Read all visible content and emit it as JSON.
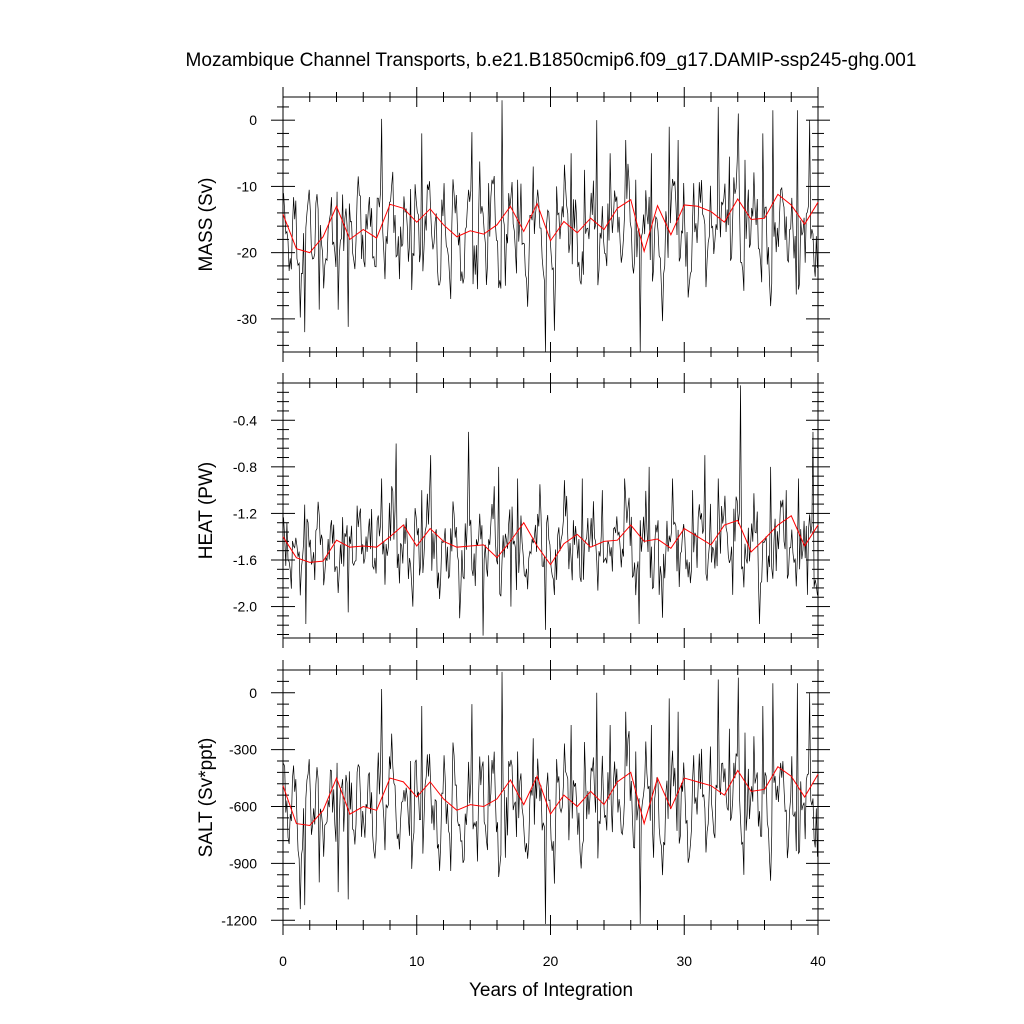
{
  "chart_data": {
    "type": "line",
    "title": "Mozambique Channel Transports, b.e21.B1850cmip6.f09_g17.DAMIP-ssp245-ghg.001",
    "xlabel": "Years of Integration",
    "xlim": [
      0,
      40
    ],
    "xticks": [
      "0",
      "10",
      "20",
      "30",
      "40"
    ],
    "colors": {
      "monthly": "#000000",
      "annual": "#ff0000"
    },
    "panels": [
      {
        "ylabel": "MASS (Sv)",
        "ylim": [
          -35,
          3.5
        ],
        "yticks": [
          "0",
          "-10",
          "-20",
          "-30"
        ],
        "ytick_values": [
          0,
          -10,
          -20,
          -30
        ],
        "annual_mean": [
          -14.2,
          -19.4,
          -20.0,
          -17.6,
          -13.0,
          -18.0,
          -16.5,
          -17.8,
          -12.7,
          -13.3,
          -15.4,
          -13.4,
          -15.8,
          -17.6,
          -16.7,
          -17.2,
          -15.8,
          -13.0,
          -16.8,
          -12.6,
          -18.2,
          -15.3,
          -17.0,
          -14.8,
          -16.5,
          -13.3,
          -12.0,
          -19.8,
          -12.9,
          -17.3,
          -12.8,
          -13.0,
          -13.8,
          -15.4,
          -11.9,
          -15.0,
          -14.8,
          -11.2,
          -12.8,
          -15.7,
          -12.4
        ],
        "monthly_anchor": [
          -12,
          -18,
          -22,
          -12,
          -18,
          -29,
          -16,
          -12,
          -18,
          -22,
          -10,
          -16,
          -25,
          -18,
          -12,
          -20,
          -28,
          -14,
          -18,
          -10,
          -16,
          -22,
          -8,
          -18,
          -20,
          -12,
          -16,
          -25,
          -10,
          -16,
          -22,
          -14,
          -8,
          -16,
          -22,
          -18,
          -12,
          -20,
          -26,
          -10,
          -18,
          -24,
          -14,
          -8,
          -20,
          -16,
          -28,
          -12,
          -18,
          -22,
          -10,
          -14,
          -20,
          -26,
          -16,
          -12,
          -22,
          -18,
          -10,
          -14,
          -24,
          -16,
          -8,
          -20,
          -28,
          -14,
          -18,
          -10,
          -16,
          -22,
          -12,
          -20,
          -26,
          -14,
          -18,
          -10,
          -16,
          -24,
          -12,
          -20,
          -28,
          -14,
          -18,
          -8,
          -16,
          -22,
          -12,
          -20,
          -26,
          -14,
          -18,
          -10,
          -16,
          -24,
          -12,
          -20,
          -15,
          -18,
          -10,
          -16,
          -22,
          -12,
          -8,
          -20,
          -26,
          -14,
          -18,
          -10,
          -16,
          -24,
          -12,
          -20,
          -28,
          -14,
          -18,
          -8,
          -16,
          -22,
          -12,
          -20,
          -26,
          -14,
          -18,
          -10,
          -16,
          -24,
          -12,
          -20,
          -15,
          -14,
          -10,
          -16,
          -22,
          -12,
          -8,
          -20,
          -26,
          -14,
          -18,
          -10,
          -16,
          -24,
          -12,
          -20,
          -28,
          -14,
          -18,
          -8,
          -16,
          -22,
          -12,
          -20,
          -26,
          -14,
          -18,
          -10,
          -16,
          -24
        ],
        "extremes": [
          [
            1.6,
            -32.0
          ],
          [
            1.9,
            -10.5
          ],
          [
            2.7,
            -28.6
          ],
          [
            4.0,
            -10.8
          ],
          [
            4.8,
            -31.2
          ],
          [
            7.3,
            0.2
          ],
          [
            7.6,
            -24.0
          ],
          [
            9.5,
            -10.4
          ],
          [
            10.3,
            -2.0
          ],
          [
            12.0,
            -9.5
          ],
          [
            12.5,
            -27.0
          ],
          [
            14.1,
            -1.8
          ],
          [
            14.5,
            -25.5
          ],
          [
            15.3,
            -9.5
          ],
          [
            16.3,
            3.0
          ],
          [
            16.6,
            -25.0
          ],
          [
            17.5,
            -9.0
          ],
          [
            18.7,
            -7.0
          ],
          [
            19.6,
            -35.0
          ],
          [
            20.4,
            -10.0
          ],
          [
            21.5,
            -5.0
          ],
          [
            22.5,
            -7.5
          ],
          [
            23.4,
            0.0
          ],
          [
            24.4,
            -5.0
          ],
          [
            25.6,
            -3.0
          ],
          [
            26.3,
            -9.0
          ],
          [
            26.7,
            -35.0
          ],
          [
            27.5,
            -5.0
          ],
          [
            28.8,
            -1.0
          ],
          [
            29.5,
            -3.0
          ],
          [
            30.7,
            -9.5
          ],
          [
            32.5,
            2.0
          ],
          [
            33.3,
            -5.5
          ],
          [
            34.0,
            1.0
          ],
          [
            34.5,
            -6.0
          ],
          [
            35.8,
            -2.0
          ],
          [
            36.6,
            1.5
          ],
          [
            37.2,
            -10.5
          ],
          [
            38.4,
            1.5
          ],
          [
            39.3,
            0.0
          ],
          [
            39.8,
            -17.5
          ]
        ]
      },
      {
        "ylabel": "HEAT (PW)",
        "ylim": [
          -2.27,
          -0.08
        ],
        "yticks": [
          "-0.4",
          "-0.8",
          "-1.2",
          "-1.6",
          "-2.0"
        ],
        "ytick_values": [
          -0.4,
          -0.8,
          -1.2,
          -1.6,
          -2.0
        ],
        "annual_mean": [
          -1.4,
          -1.58,
          -1.62,
          -1.61,
          -1.43,
          -1.49,
          -1.48,
          -1.49,
          -1.4,
          -1.3,
          -1.48,
          -1.33,
          -1.44,
          -1.49,
          -1.48,
          -1.47,
          -1.58,
          -1.44,
          -1.28,
          -1.48,
          -1.64,
          -1.46,
          -1.38,
          -1.49,
          -1.44,
          -1.43,
          -1.3,
          -1.44,
          -1.42,
          -1.5,
          -1.33,
          -1.4,
          -1.47,
          -1.3,
          -1.26,
          -1.53,
          -1.42,
          -1.3,
          -1.22,
          -1.48,
          -1.3
        ],
        "monthly_anchor": [
          -1.3,
          -1.5,
          -1.7,
          -1.4,
          -1.5,
          -1.9,
          -1.4,
          -1.3,
          -1.5,
          -1.7,
          -1.3,
          -1.4,
          -1.8,
          -1.5,
          -1.3,
          -1.6,
          -1.9,
          -1.4,
          -1.5,
          -1.2,
          -1.4,
          -1.7,
          -1.1,
          -1.5,
          -1.6,
          -1.3,
          -1.4,
          -1.8,
          -1.2,
          -1.4,
          -1.7,
          -1.4,
          -1.1,
          -1.4,
          -1.7,
          -1.5,
          -1.3,
          -1.6,
          -1.8,
          -1.2,
          -1.5,
          -1.7,
          -1.4,
          -1.1,
          -1.6,
          -1.4,
          -1.9,
          -1.3,
          -1.5,
          -1.7,
          -1.2,
          -1.4,
          -1.6,
          -1.8,
          -1.4,
          -1.3,
          -1.7,
          -1.5,
          -1.2,
          -1.4,
          -1.8,
          -1.4,
          -1.1,
          -1.6,
          -1.9,
          -1.4,
          -1.5,
          -1.2,
          -1.4,
          -1.7,
          -1.3,
          -1.6,
          -1.8,
          -1.4,
          -1.5,
          -1.2,
          -1.4,
          -1.8,
          -1.3,
          -1.6,
          -1.9,
          -1.4,
          -1.5,
          -1.1,
          -1.4,
          -1.7,
          -1.3,
          -1.6,
          -1.8,
          -1.4,
          -1.5,
          -1.2,
          -1.4,
          -1.8,
          -1.3,
          -1.6,
          -1.5,
          -1.5,
          -1.2,
          -1.4,
          -1.7,
          -1.3,
          -1.1,
          -1.6,
          -1.8,
          -1.4,
          -1.5,
          -1.2,
          -1.4,
          -1.8,
          -1.3,
          -1.6,
          -1.9,
          -1.4,
          -1.5,
          -1.1,
          -1.4,
          -1.7,
          -1.3,
          -1.6,
          -1.8,
          -1.4,
          -1.5,
          -1.2,
          -1.4,
          -1.8,
          -1.3,
          -1.6,
          -1.5,
          -1.4,
          -1.2,
          -1.4,
          -1.7,
          -1.3,
          -1.1,
          -1.6,
          -1.8,
          -1.4,
          -1.5,
          -1.2,
          -1.4,
          -1.8,
          -1.3,
          -1.6,
          -1.9,
          -1.4,
          -1.5,
          -1.1,
          -1.4,
          -1.7,
          -1.3,
          -1.6,
          -1.8,
          -1.4,
          -1.5,
          -1.2,
          -1.4,
          -1.8
        ],
        "extremes": [
          [
            1.7,
            -2.15
          ],
          [
            2.6,
            -1.1
          ],
          [
            4.8,
            -2.05
          ],
          [
            7.3,
            -0.9
          ],
          [
            8.4,
            -0.6
          ],
          [
            9.7,
            -2.0
          ],
          [
            10.3,
            -1.0
          ],
          [
            11.0,
            -0.7
          ],
          [
            13.2,
            -2.1
          ],
          [
            13.8,
            -0.5
          ],
          [
            14.9,
            -2.25
          ],
          [
            16.1,
            -0.8
          ],
          [
            17.0,
            -2.0
          ],
          [
            17.5,
            -0.9
          ],
          [
            19.2,
            -0.95
          ],
          [
            19.6,
            -2.2
          ],
          [
            21.2,
            -1.05
          ],
          [
            22.3,
            -0.9
          ],
          [
            23.8,
            -1.0
          ],
          [
            25.5,
            -0.9
          ],
          [
            26.6,
            -2.15
          ],
          [
            27.3,
            -0.8
          ],
          [
            28.1,
            -1.9
          ],
          [
            29.1,
            -0.9
          ],
          [
            30.6,
            -1.0
          ],
          [
            31.5,
            -0.7
          ],
          [
            32.5,
            -0.9
          ],
          [
            33.6,
            -1.9
          ],
          [
            34.2,
            -0.1
          ],
          [
            35.6,
            -2.15
          ],
          [
            36.4,
            -0.8
          ],
          [
            37.6,
            -1.0
          ],
          [
            38.5,
            -0.9
          ],
          [
            39.2,
            -1.9
          ],
          [
            39.6,
            -0.5
          ]
        ]
      },
      {
        "ylabel": "SALT (Sv*ppt)",
        "ylim": [
          -1225,
          120
        ],
        "yticks": [
          "0",
          "-300",
          "-600",
          "-900",
          "-1200"
        ],
        "ytick_values": [
          0,
          -300,
          -600,
          -900,
          -1200
        ],
        "annual_mean": [
          -490,
          -690,
          -700,
          -620,
          -450,
          -640,
          -600,
          -620,
          -450,
          -470,
          -550,
          -470,
          -560,
          -620,
          -590,
          -600,
          -560,
          -460,
          -590,
          -440,
          -640,
          -540,
          -600,
          -520,
          -590,
          -470,
          -420,
          -690,
          -450,
          -610,
          -450,
          -470,
          -490,
          -540,
          -410,
          -520,
          -510,
          -390,
          -440,
          -550,
          -430
        ],
        "monthly_anchor": [
          -420,
          -640,
          -780,
          -420,
          -640,
          -1020,
          -560,
          -420,
          -640,
          -780,
          -350,
          -560,
          -880,
          -640,
          -420,
          -700,
          -980,
          -490,
          -640,
          -350,
          -560,
          -780,
          -280,
          -640,
          -700,
          -420,
          -560,
          -880,
          -350,
          -560,
          -780,
          -490,
          -280,
          -560,
          -780,
          -640,
          -420,
          -700,
          -920,
          -350,
          -640,
          -840,
          -490,
          -280,
          -700,
          -560,
          -980,
          -420,
          -640,
          -780,
          -350,
          -490,
          -700,
          -920,
          -560,
          -420,
          -780,
          -640,
          -350,
          -490,
          -840,
          -560,
          -280,
          -700,
          -980,
          -490,
          -640,
          -350,
          -560,
          -780,
          -420,
          -700,
          -920,
          -490,
          -640,
          -350,
          -560,
          -840,
          -420,
          -700,
          -980,
          -490,
          -640,
          -280,
          -560,
          -780,
          -420,
          -700,
          -920,
          -490,
          -640,
          -350,
          -560,
          -840,
          -420,
          -700,
          -530,
          -640,
          -350,
          -560,
          -780,
          -420,
          -280,
          -700,
          -920,
          -490,
          -640,
          -350,
          -560,
          -840,
          -420,
          -700,
          -980,
          -490,
          -640,
          -280,
          -560,
          -780,
          -420,
          -700,
          -920,
          -490,
          -640,
          -350,
          -560,
          -840,
          -420,
          -700,
          -530,
          -490,
          -350,
          -560,
          -780,
          -420,
          -280,
          -700,
          -920,
          -490,
          -640,
          -350,
          -560,
          -840,
          -420,
          -700,
          -980,
          -490,
          -640,
          -280,
          -560,
          -780,
          -420,
          -700,
          -920,
          -490,
          -640,
          -350,
          -560,
          -840
        ],
        "extremes": [
          [
            1.6,
            -1120
          ],
          [
            1.9,
            -350
          ],
          [
            2.7,
            -1000
          ],
          [
            4.0,
            -370
          ],
          [
            4.8,
            -1090
          ],
          [
            7.3,
            20
          ],
          [
            7.6,
            -830
          ],
          [
            9.5,
            -360
          ],
          [
            10.3,
            -70
          ],
          [
            12.0,
            -330
          ],
          [
            12.5,
            -940
          ],
          [
            14.1,
            -60
          ],
          [
            14.5,
            -890
          ],
          [
            15.3,
            -330
          ],
          [
            16.3,
            110
          ],
          [
            16.6,
            -870
          ],
          [
            17.5,
            -310
          ],
          [
            18.7,
            -240
          ],
          [
            19.6,
            -1220
          ],
          [
            20.4,
            -350
          ],
          [
            21.5,
            -170
          ],
          [
            22.5,
            -260
          ],
          [
            23.4,
            0
          ],
          [
            24.4,
            -170
          ],
          [
            25.6,
            -100
          ],
          [
            26.3,
            -310
          ],
          [
            26.7,
            -1220
          ],
          [
            27.5,
            -170
          ],
          [
            28.8,
            -30
          ],
          [
            29.5,
            -100
          ],
          [
            30.7,
            -330
          ],
          [
            32.5,
            70
          ],
          [
            33.3,
            -190
          ],
          [
            34.0,
            80
          ],
          [
            34.5,
            -210
          ],
          [
            35.8,
            -70
          ],
          [
            36.6,
            50
          ],
          [
            37.2,
            -370
          ],
          [
            38.4,
            50
          ],
          [
            39.3,
            0
          ],
          [
            39.8,
            -610
          ]
        ]
      }
    ]
  }
}
